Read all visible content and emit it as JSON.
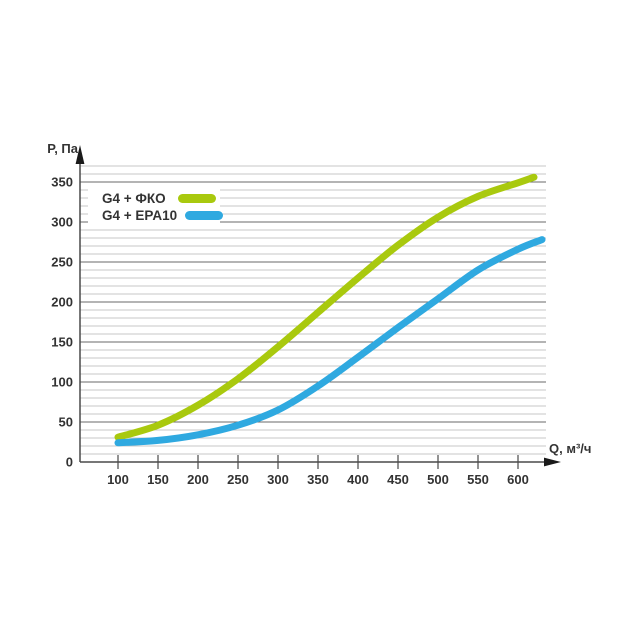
{
  "chart_data": {
    "type": "line",
    "xlabel": "Q, м³/ч",
    "ylabel": "P, Па",
    "xlim": [
      52.5,
      635
    ],
    "ylim": [
      0,
      372.5
    ],
    "x_ticks": [
      100,
      150,
      200,
      250,
      300,
      350,
      400,
      450,
      500,
      550,
      600
    ],
    "y_ticks": [
      0,
      50,
      100,
      150,
      200,
      250,
      300,
      350
    ],
    "grid": {
      "orientation": "horizontal-only",
      "minor_step": 10,
      "major_step": 50,
      "max": 370,
      "minor_color": "#c7c7c7",
      "major_color": "#686868"
    },
    "axis_color": "#4a4a4a",
    "arrow_color": "#1a1a1a",
    "legend_position": "top-left-inside",
    "series": [
      {
        "id": "g4-fko",
        "name": "G4 + ФКО",
        "color": "#a9c90e",
        "points": [
          [
            100,
            31
          ],
          [
            150,
            46
          ],
          [
            200,
            71
          ],
          [
            250,
            104
          ],
          [
            300,
            144
          ],
          [
            350,
            187
          ],
          [
            400,
            230
          ],
          [
            450,
            271
          ],
          [
            500,
            306
          ],
          [
            550,
            332
          ],
          [
            600,
            349
          ],
          [
            620,
            356
          ]
        ]
      },
      {
        "id": "g4-epa10",
        "name": "G4 + EPA10",
        "color": "#2fa9e0",
        "points": [
          [
            100,
            24
          ],
          [
            150,
            27
          ],
          [
            200,
            34
          ],
          [
            250,
            46
          ],
          [
            300,
            65
          ],
          [
            350,
            95
          ],
          [
            400,
            131
          ],
          [
            450,
            168
          ],
          [
            500,
            204
          ],
          [
            550,
            240
          ],
          [
            600,
            266
          ],
          [
            630,
            278
          ]
        ]
      }
    ]
  }
}
